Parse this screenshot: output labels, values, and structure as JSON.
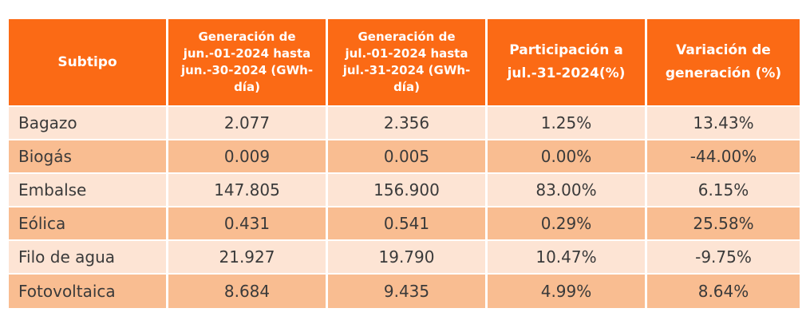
{
  "headers": [
    "Subtipo",
    "Generación de jun.-01-2024 hasta jun.-30-2024 (GWh-día)",
    "Generación de jul.-01-2024 hasta jul.-31-2024 (GWh-día)",
    "Participación a jul.-31-2024(%)",
    "Variación de generación (%)"
  ],
  "rows": [
    [
      "Bagazo",
      "2.077",
      "2.356",
      "1.25%",
      "13.43%"
    ],
    [
      "Biogás",
      "0.009",
      "0.005",
      "0.00%",
      "-44.00%"
    ],
    [
      "Embalse",
      "147.805",
      "156.900",
      "83.00%",
      "6.15%"
    ],
    [
      "Eólica",
      "0.431",
      "0.541",
      "0.29%",
      "25.58%"
    ],
    [
      "Filo de agua",
      "21.927",
      "19.790",
      "10.47%",
      "-9.75%"
    ],
    [
      "Fotovoltaica",
      "8.684",
      "9.435",
      "4.99%",
      "8.64%"
    ]
  ],
  "colors": {
    "header_bg": "#fb6a15",
    "row_light": "#fde4d4",
    "row_dark": "#f9bd91"
  }
}
